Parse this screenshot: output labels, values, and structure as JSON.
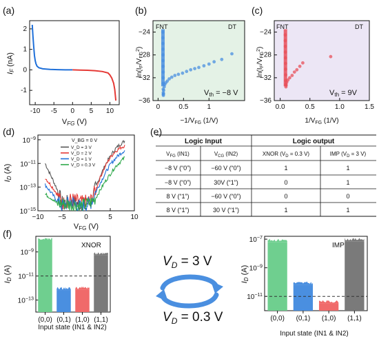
{
  "panels": {
    "a": {
      "label": "(a)",
      "xlabel": "V_FG (V)",
      "ylabel": "I_F (nA)",
      "xticks": [
        "-10",
        "-5",
        "0",
        "5",
        "10"
      ],
      "yticks": [
        "2",
        "1",
        "0",
        "-1"
      ]
    },
    "b": {
      "label": "(b)",
      "xlabel": "-1/V_FG (1/V)",
      "ylabel": "ln(I_F/V_FG^2)",
      "region_left": "FNT",
      "region_right": "DT",
      "annotation": "V_th = -8 V",
      "xticks": [
        "0",
        "0.5",
        "1"
      ],
      "yticks": [
        "-24",
        "-28",
        "-32",
        "-36"
      ],
      "bg_color": "#e4f2e6",
      "point_color": "#4a8fe0"
    },
    "c": {
      "label": "(c)",
      "xlabel": "1/V_FG (1/V)",
      "ylabel": "ln(I_F/V_FG^2)",
      "region_left": "FNT",
      "region_right": "DT",
      "annotation": "V_th = 9V",
      "xticks": [
        "0.0",
        "0.5",
        "1.0",
        "1.5"
      ],
      "yticks": [
        "-24",
        "-28",
        "-32",
        "-36"
      ],
      "bg_color": "#ece6f5",
      "point_color": "#e8505a"
    },
    "d": {
      "label": "(d)",
      "xlabel": "V_FG (V)",
      "ylabel": "I_D (A)",
      "xticks": [
        "-10",
        "-5",
        "0",
        "5",
        "10"
      ],
      "yticks": [
        "10^-9",
        "10^-11",
        "10^-13",
        "10^-15"
      ],
      "legend_header": "V_BG = 0 V",
      "legend": [
        {
          "label": "V_D = 3 V",
          "color": "#555555"
        },
        {
          "label": "V_D = 2 V",
          "color": "#e53935"
        },
        {
          "label": "V_D = 1 V",
          "color": "#1e6fd9"
        },
        {
          "label": "V_D = 0.3 V",
          "color": "#2ea84a"
        }
      ]
    },
    "e": {
      "label": "(e)",
      "group_input": "Logic Input",
      "group_output": "Logic output",
      "headers": [
        "V_FG (IN1)",
        "V_CG (IN2)",
        "XNOR (V_D = 0.3 V)",
        "IMP (V_D = 3 V)"
      ],
      "rows": [
        [
          "−8 V (“0”)",
          "−60 V (“0”)",
          "1",
          "1"
        ],
        [
          "−8 V (“0”)",
          "30V (“1”)",
          "0",
          "1"
        ],
        [
          "8 V (“1”)",
          "−60 V (“0”)",
          "0",
          "0"
        ],
        [
          "8 V (“1”)",
          "30 V (“1”)",
          "1",
          "1"
        ]
      ]
    },
    "f": {
      "label": "(f)",
      "xlabel": "Input state (IN1 & IN2)",
      "ylabel": "I_D (A)",
      "categories": [
        "(0,0)",
        "(0,1)",
        "(1,0)",
        "(1,1)"
      ],
      "xnor_title": "XNOR",
      "imp_title": "IMP",
      "xnor_yticks": [
        "10^-9",
        "10^-11",
        "10^-13"
      ],
      "imp_yticks": [
        "10^-7",
        "10^-9",
        "10^-11"
      ],
      "vd_top": "V_D = 3 V",
      "vd_bottom": "V_D = 0.3 V",
      "bar_colors": [
        "#6fcf8f",
        "#4a8fe0",
        "#f06a6a",
        "#7a7a7a"
      ],
      "threshold_color": "#333333"
    }
  },
  "chart_data": [
    {
      "type": "line",
      "panel": "a",
      "xlabel": "V_FG (V)",
      "ylabel": "I_F (nA)",
      "xlim": [
        -11.5,
        12.5
      ],
      "ylim": [
        -1.7,
        2.4
      ],
      "series": [
        {
          "color": "#1e6fd9",
          "x": [
            -10.8,
            -10.6,
            -10.4,
            -10.2,
            -10.0,
            -9.8,
            -9.5,
            -9.0,
            -8.0,
            -6.0,
            -4.0,
            -2.0,
            0.0
          ],
          "y": [
            2.2,
            1.6,
            1.1,
            0.7,
            0.45,
            0.3,
            0.18,
            0.1,
            0.05,
            0.02,
            0.01,
            0.0,
            0.0
          ]
        },
        {
          "color": "#e53935",
          "x": [
            0.0,
            2.0,
            4.0,
            6.0,
            8.0,
            9.5,
            10.0,
            10.5,
            11.0,
            11.3,
            11.6
          ],
          "y": [
            0.0,
            -0.01,
            -0.02,
            -0.04,
            -0.08,
            -0.15,
            -0.25,
            -0.4,
            -0.65,
            -0.95,
            -1.5
          ]
        }
      ]
    },
    {
      "type": "scatter",
      "panel": "b",
      "xlabel": "-1/V_FG (1/V)",
      "ylabel": "ln(I_F/V_FG^2)",
      "xlim": [
        -0.1,
        1.7
      ],
      "ylim": [
        -36,
        -22
      ],
      "series": [
        {
          "color": "#4a8fe0",
          "x": [
            0.093,
            0.094,
            0.095,
            0.096,
            0.097,
            0.098,
            0.099,
            0.1,
            0.1,
            0.1,
            0.1,
            0.101,
            0.102,
            0.104,
            0.107,
            0.11,
            0.12,
            0.13,
            0.15,
            0.18,
            0.22,
            0.27,
            0.33,
            0.4,
            0.48,
            0.56,
            0.64,
            0.72,
            0.8,
            0.9,
            1.0,
            1.1,
            1.25,
            1.45
          ],
          "y": [
            -24.0,
            -25.0,
            -26.0,
            -27.0,
            -28.0,
            -29.0,
            -30.0,
            -31.0,
            -32.0,
            -33.0,
            -34.0,
            -34.6,
            -34.9,
            -35.1,
            -34.8,
            -34.2,
            -33.6,
            -33.2,
            -32.9,
            -32.6,
            -32.2,
            -31.9,
            -31.6,
            -31.4,
            -31.2,
            -30.9,
            -30.6,
            -30.4,
            -30.2,
            -29.9,
            -29.6,
            -29.2,
            -28.8,
            -27.8
          ]
        }
      ],
      "annotation": "V_th = -8 V"
    },
    {
      "type": "scatter",
      "panel": "c",
      "xlabel": "1/V_FG (1/V)",
      "ylabel": "ln(I_F/V_FG^2)",
      "xlim": [
        -0.1,
        1.5
      ],
      "ylim": [
        -36,
        -22
      ],
      "series": [
        {
          "color": "#e8505a",
          "x": [
            0.085,
            0.086,
            0.087,
            0.088,
            0.089,
            0.09,
            0.091,
            0.092,
            0.093,
            0.094,
            0.096,
            0.1,
            0.11,
            0.13,
            0.16,
            0.2,
            0.24,
            0.28,
            0.33,
            0.38,
            0.85
          ],
          "y": [
            -24.5,
            -25.5,
            -26.5,
            -27.5,
            -28.5,
            -29.5,
            -30.5,
            -31.5,
            -32.5,
            -33.2,
            -33.6,
            -33.3,
            -32.8,
            -32.4,
            -32.0,
            -31.6,
            -31.0,
            -30.6,
            -30.0,
            -29.4,
            -28.3
          ]
        }
      ],
      "annotation": "V_th = 9V"
    },
    {
      "type": "line",
      "panel": "d",
      "xlabel": "V_FG (V)",
      "ylabel": "I_D (A)",
      "xlim": [
        -10,
        10
      ],
      "ylim_log10": [
        -15,
        -8.6
      ],
      "x": [
        -8.5,
        -7.0,
        -6.0,
        -5.0,
        -3.0,
        -1.0,
        1.0,
        2.0,
        3.0,
        4.0,
        5.0,
        6.0,
        7.0,
        8.0
      ],
      "series": [
        {
          "name": "V_D = 3 V",
          "color": "#555555",
          "log10_y": [
            -11.0,
            -12.3,
            -13.2,
            -14.3,
            -14.2,
            -14.5,
            -14.3,
            -13.0,
            -12.0,
            -11.1,
            -10.4,
            -9.8,
            -9.4,
            -9.1
          ]
        },
        {
          "name": "V_D = 2 V",
          "color": "#e53935",
          "log10_y": [
            -12.2,
            -13.0,
            -13.6,
            -14.4,
            -14.0,
            -14.3,
            -14.1,
            -13.2,
            -12.1,
            -11.2,
            -10.5,
            -10.0,
            -9.7,
            -9.5
          ]
        },
        {
          "name": "V_D = 1 V",
          "color": "#1e6fd9",
          "log10_y": [
            -12.8,
            -13.6,
            -14.2,
            -14.6,
            -14.2,
            -14.7,
            -14.3,
            -13.4,
            -12.6,
            -11.8,
            -11.1,
            -10.6,
            -10.2,
            -9.9
          ]
        },
        {
          "name": "V_D = 0.3 V",
          "color": "#2ea84a",
          "log10_y": [
            -13.6,
            -14.0,
            -14.4,
            -14.4,
            -14.5,
            -14.6,
            -14.3,
            -13.9,
            -13.2,
            -12.5,
            -11.9,
            -11.3,
            -10.9,
            -10.5
          ]
        }
      ]
    },
    {
      "type": "table",
      "panel": "e",
      "headers": [
        "V_FG (IN1)",
        "V_CG (IN2)",
        "XNOR (V_D = 0.3 V)",
        "IMP (V_D = 3 V)"
      ],
      "rows": [
        [
          "−8 V (“0”)",
          "−60 V (“0”)",
          "1",
          "1"
        ],
        [
          "−8 V (“0”)",
          "30V (“1”)",
          "0",
          "1"
        ],
        [
          "8 V (“1”)",
          "−60 V (“0”)",
          "0",
          "0"
        ],
        [
          "8 V (“1”)",
          "30 V (“1”)",
          "1",
          "1"
        ]
      ]
    },
    {
      "type": "bar",
      "panel": "f-xnor",
      "title": "XNOR",
      "categories": [
        "(0,0)",
        "(0,1)",
        "(1,0)",
        "(1,1)"
      ],
      "log10_values": [
        -8.1,
        -12.2,
        -12.15,
        -9.3
      ],
      "ylim_log10": [
        -14,
        -7.7
      ],
      "threshold_log10": -11,
      "xlabel": "Input state (IN1 & IN2)",
      "ylabel": "I_D (A)"
    },
    {
      "type": "bar",
      "panel": "f-imp",
      "title": "IMP",
      "categories": [
        "(0,0)",
        "(0,1)",
        "(1,0)",
        "(1,1)"
      ],
      "log10_values": [
        -7.2,
        -10.2,
        -11.5,
        -7.15
      ],
      "ylim_log10": [
        -12,
        -6.8
      ],
      "threshold_log10": -11,
      "xlabel": "Input state (IN1 & IN2)",
      "ylabel": "I_D (A)"
    }
  ]
}
